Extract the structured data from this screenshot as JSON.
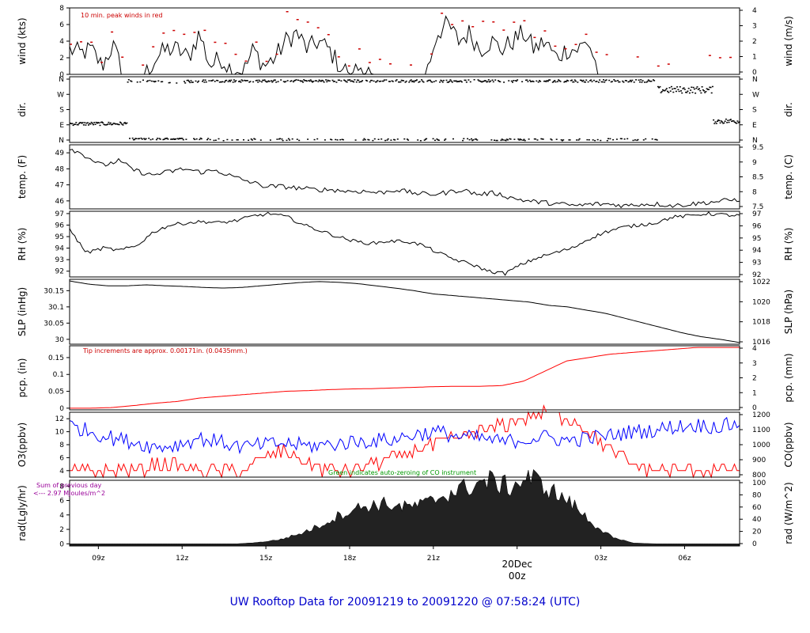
{
  "title": "UW Rooftop Data for 20091219  to  20091220 @ 07:58:24  (UTC)",
  "chart_data": {
    "type": "line",
    "x_ticks": [
      "09z",
      "12z",
      "15z",
      "18z",
      "21z",
      "20Dec",
      "03z",
      "06z"
    ],
    "x_tick_hours": [
      9,
      12,
      15,
      18,
      21,
      24,
      27,
      30
    ],
    "x_range_hours": [
      7.97,
      31.97
    ],
    "date_marker": {
      "label": "20Dec",
      "sublabel": "00z"
    },
    "panels": [
      {
        "id": "wind",
        "ylabel_left": "wind (kts)",
        "ylabel_right": "wind (m/s)",
        "left_ticks": [
          0,
          2,
          4,
          6,
          8
        ],
        "right_ticks": [
          0,
          1,
          2,
          3,
          4
        ],
        "ylim": [
          0,
          8
        ],
        "note": "10 min. peak winds in red",
        "note_color": "#cc0000",
        "series": [
          {
            "color": "#000000",
            "values_kts": [
              3,
              2.5,
              3,
              1,
              3.5,
              0,
              0,
              0,
              2,
              3,
              3,
              2,
              5,
              1,
              2,
              0.5,
              0,
              3,
              1,
              2,
              4,
              5,
              3,
              4,
              3,
              1,
              0,
              1,
              0,
              0,
              0,
              0,
              0,
              0,
              5,
              6,
              4,
              5,
              3,
              4,
              3,
              4,
              5,
              3,
              4,
              2,
              3,
              3,
              4,
              0,
              0,
              0,
              0,
              0,
              0,
              0,
              0,
              0,
              0,
              0,
              0,
              0,
              0
            ]
          },
          {
            "color": "#cc0000",
            "name": "10 min. peak winds",
            "values_kts": [
              4,
              4,
              4,
              2,
              5,
              1,
              1,
              1,
              3,
              4,
              5,
              4,
              7,
              2,
              3,
              2,
              1,
              4,
              2,
              3,
              6,
              7,
              5,
              6,
              4,
              2,
              1,
              2,
              1,
              1,
              1,
              1,
              1,
              1,
              6,
              7,
              6,
              7,
              5,
              6,
              5,
              6,
              6,
              5,
              5,
              4,
              4,
              4,
              5,
              1,
              1,
              1,
              1,
              1,
              1,
              1,
              1,
              1,
              1,
              1,
              1,
              1,
              1
            ]
          }
        ]
      },
      {
        "id": "dir",
        "ylabel_left": "dir.",
        "ylabel_right": "dir.",
        "left_ticks": [
          "N",
          "E",
          "S",
          "W",
          "N"
        ],
        "right_ticks": [
          "N",
          "E",
          "S",
          "W",
          "N"
        ],
        "ylim": [
          0,
          360
        ]
      },
      {
        "id": "temp",
        "ylabel_left": "temp. (F)",
        "ylabel_right": "temp. (C)",
        "left_ticks": [
          46,
          47,
          48,
          49
        ],
        "right_ticks": [
          7.5,
          8,
          8.5,
          9,
          9.5
        ],
        "ylim": [
          45.5,
          49.5
        ],
        "series": [
          {
            "color": "#000000",
            "values": [
              49.3,
              48.8,
              48.2,
              48.5,
              47.9,
              47.6,
              47.8,
              48.0,
              47.8,
              47.9,
              47.5,
              47.2,
              46.9,
              46.9,
              46.8,
              46.7,
              46.7,
              46.6,
              46.6,
              46.5,
              46.7,
              46.5,
              46.4,
              46.5,
              46.7,
              46.4,
              46.5,
              46.2,
              46.0,
              45.9,
              45.8,
              45.7,
              45.8,
              45.8,
              45.7,
              45.8,
              45.8,
              45.7,
              45.8,
              45.9,
              46.0,
              46.1
            ]
          }
        ]
      },
      {
        "id": "rh",
        "ylabel_left": "RH (%)",
        "ylabel_right": "RH (%)",
        "left_ticks": [
          92,
          93,
          94,
          95,
          96,
          97
        ],
        "right_ticks": [
          92,
          93,
          94,
          95,
          96,
          97
        ],
        "ylim": [
          91.5,
          97.2
        ],
        "series": [
          {
            "color": "#000000",
            "values": [
              95.6,
              93.6,
              94.0,
              93.8,
              94.2,
              95.4,
              96.0,
              96.2,
              96.3,
              96.2,
              96.4,
              96.8,
              97.0,
              96.7,
              96.0,
              95.5,
              95.0,
              94.6,
              94.4,
              94.6,
              94.6,
              94.3,
              93.6,
              93.0,
              92.6,
              92.0,
              91.8,
              92.6,
              93.2,
              93.6,
              94.0,
              94.8,
              95.4,
              95.8,
              96.0,
              96.2,
              96.7,
              96.8,
              97.0,
              96.9,
              96.8
            ]
          }
        ]
      },
      {
        "id": "slp",
        "ylabel_left": "SLP (inHg)",
        "ylabel_right": "SLP (hPa)",
        "left_ticks": [
          30.0,
          30.05,
          30.1,
          30.15
        ],
        "right_ticks": [
          1016,
          1018,
          1020,
          1022
        ],
        "ylim": [
          29.985,
          30.185
        ],
        "series": [
          {
            "color": "#000000",
            "values": [
              30.18,
              30.17,
              30.165,
              30.165,
              30.168,
              30.165,
              30.163,
              30.16,
              30.158,
              30.16,
              30.165,
              30.17,
              30.175,
              30.178,
              30.176,
              30.172,
              30.165,
              30.158,
              30.15,
              30.14,
              30.135,
              30.13,
              30.125,
              30.12,
              30.115,
              30.105,
              30.1,
              30.09,
              30.08,
              30.065,
              30.05,
              30.035,
              30.02,
              30.008,
              30.0,
              29.99
            ]
          }
        ]
      },
      {
        "id": "pcp",
        "ylabel_left": "pcp. (in)",
        "ylabel_right": "pcp. (mm)",
        "left_ticks": [
          0.0,
          0.05,
          0.1,
          0.15
        ],
        "right_ticks": [
          0,
          1,
          2,
          3,
          4
        ],
        "ylim": [
          -0.005,
          0.185
        ],
        "note": "Tip increments are approx. 0.00171in. (0.0435mm.)",
        "note_color": "#cc0000",
        "series": [
          {
            "color": "#ff0000",
            "values": [
              0.0,
              0.0,
              0.002,
              0.008,
              0.015,
              0.02,
              0.03,
              0.035,
              0.04,
              0.045,
              0.05,
              0.052,
              0.055,
              0.057,
              0.058,
              0.06,
              0.062,
              0.064,
              0.065,
              0.065,
              0.067,
              0.08,
              0.11,
              0.14,
              0.15,
              0.16,
              0.165,
              0.17,
              0.175,
              0.18,
              0.18,
              0.18
            ]
          }
        ]
      },
      {
        "id": "o3co",
        "ylabel_left": "O3(ppbv)",
        "ylabel_right": "CO(ppbv)",
        "ylabel_left_color": "#ff0000",
        "ylabel_right_color": "#0000ff",
        "left_ticks": [
          4,
          6,
          8,
          10,
          12
        ],
        "right_ticks": [
          800,
          900,
          1000,
          1100,
          1200
        ],
        "ylim": [
          3,
          13
        ],
        "note": "Green indicates auto-zeroing of CO instrument",
        "note_color": "#009900",
        "series": [
          {
            "name": "O3",
            "color": "#ff0000",
            "values": [
              4,
              4,
              4,
              4,
              5,
              5,
              4,
              4,
              4,
              6,
              7,
              5,
              4,
              4,
              5,
              6,
              7,
              8,
              9,
              10,
              11,
              12,
              13,
              12,
              10,
              7,
              5,
              4,
              4,
              4,
              4,
              4
            ]
          },
          {
            "name": "CO",
            "color": "#0000ff",
            "values": [
              1150,
              1100,
              1050,
              1020,
              980,
              1000,
              1050,
              1020,
              980,
              1000,
              1010,
              990,
              1000,
              1020,
              1030,
              1040,
              1080,
              1100,
              1060,
              1050,
              1020,
              1040,
              1060,
              1030,
              1050,
              1070,
              1100,
              1110,
              1140,
              1150,
              1140,
              1160
            ]
          }
        ]
      },
      {
        "id": "rad",
        "ylabel_left": "rad(Lgly/hr)",
        "ylabel_right": "rad (W/m^2)",
        "left_ticks": [
          0,
          2,
          4,
          6,
          8
        ],
        "right_ticks": [
          0,
          20,
          40,
          60,
          80,
          100
        ],
        "ylim": [
          -0.3,
          8.8
        ],
        "note": "Sum of previous day",
        "note2": "<--- 2.97 MJoules/m^2",
        "note_color": "#990099",
        "series": [
          {
            "color": "#000000",
            "fill": true,
            "values_wm2": [
              0,
              0,
              0,
              0,
              0,
              0,
              0,
              0,
              0,
              2,
              6,
              15,
              28,
              45,
              56,
              60,
              55,
              60,
              75,
              85,
              95,
              85,
              100,
              80,
              60,
              30,
              8,
              1,
              0,
              0,
              0,
              0,
              0
            ]
          }
        ]
      }
    ]
  }
}
